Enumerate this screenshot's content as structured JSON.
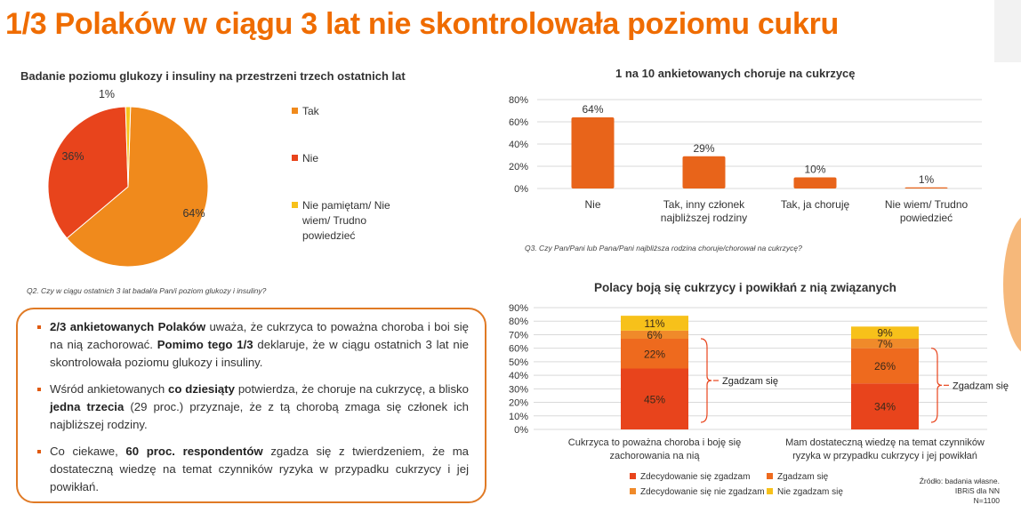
{
  "title": "1/3 Polaków w ciągu 3 lat nie skontrolowała poziomu cukru",
  "colors": {
    "accent": "#ef6c00",
    "dark_orange": "#e84a1a",
    "light_orange": "#f08020",
    "yellow": "#f7c11a"
  },
  "chart_data": [
    {
      "type": "pie",
      "title": "Badanie poziomu glukozy i insuliny na przestrzeni trzech ostatnich lat",
      "question": "Q2. Czy w ciągu ostatnich 3 lat badał/a Pan/i poziom glukozy i insuliny?",
      "labels": [
        "Tak",
        "Nie",
        "Nie pamiętam/ Nie wiem/ Trudno powiedzieć"
      ],
      "values": [
        64,
        36,
        1
      ],
      "value_labels": [
        "64%",
        "36%",
        "1%"
      ],
      "colors": [
        "#f08a1c",
        "#e8441c",
        "#f7c11a"
      ],
      "legend_position": "right"
    },
    {
      "type": "bar",
      "title": "1 na 10 ankietowanych choruje na cukrzycę",
      "question": "Q3. Czy Pan/Pani lub Pana/Pani najbliższa rodzina choruje/chorował na cukrzycę?",
      "categories": [
        "Nie",
        "Tak, inny członek najbliższej rodziny",
        "Tak, ja choruję",
        "Nie wiem/ Trudno powiedzieć"
      ],
      "category_lines": [
        [
          "Nie"
        ],
        [
          "Tak, inny członek",
          "najbliższej rodziny"
        ],
        [
          "Tak, ja choruję"
        ],
        [
          "Nie wiem/ Trudno",
          "powiedzieć"
        ]
      ],
      "values": [
        64,
        29,
        10,
        1
      ],
      "value_labels": [
        "64%",
        "29%",
        "10%",
        "1%"
      ],
      "ylim": [
        0,
        80
      ],
      "yticks": [
        "0%",
        "20%",
        "40%",
        "60%",
        "80%"
      ],
      "color": "#e8641a"
    },
    {
      "type": "bar",
      "stacked": true,
      "title": "Polacy boją się cukrzycy i powikłań z nią związanych",
      "categories": [
        "Cukrzyca to poważna choroba i boję się zachorowania na nią",
        "Mam dostateczną wiedzę na temat czynników ryzyka w przypadku cukrzycy i jej powikłań"
      ],
      "category_lines": [
        [
          "Cukrzyca to poważna choroba i boję się",
          "zachorowania na nią"
        ],
        [
          "Mam dostateczną wiedzę na temat czynników",
          "ryzyka w przypadku cukrzycy i jej powikłań"
        ]
      ],
      "series": [
        {
          "name": "Zdecydowanie się zgadzam",
          "values": [
            45,
            34
          ],
          "labels": [
            "45%",
            "34%"
          ],
          "color": "#e8441c"
        },
        {
          "name": "Zgadzam się",
          "values": [
            22,
            26
          ],
          "labels": [
            "22%",
            "26%"
          ],
          "color": "#ee6a1e"
        },
        {
          "name": "Zdecydowanie się nie zgadzam",
          "values": [
            6,
            7
          ],
          "labels": [
            "6%",
            "7%"
          ],
          "color": "#f08a2a"
        },
        {
          "name": "Nie zgadzam się",
          "values": [
            11,
            9
          ],
          "labels": [
            "11%",
            "9%"
          ],
          "color": "#f7c11a"
        }
      ],
      "ylim": [
        0,
        90
      ],
      "yticks": [
        "0%",
        "10%",
        "20%",
        "30%",
        "40%",
        "50%",
        "60%",
        "70%",
        "80%",
        "90%"
      ],
      "annotations": [
        "Zgadzam się",
        "Zgadzam się"
      ],
      "legend_position": "bottom"
    }
  ],
  "bullets": [
    [
      {
        "b": true,
        "t": "2/3 ankietowanych Polaków"
      },
      {
        "b": false,
        "t": " uważa, że cukrzyca to poważna choroba i boi się na nią zachorować. "
      },
      {
        "b": true,
        "t": "Pomimo tego 1/3"
      },
      {
        "b": false,
        "t": " deklaruje, że w ciągu ostatnich 3 lat nie skontrolowała poziomu glukozy i insuliny."
      }
    ],
    [
      {
        "b": false,
        "t": "Wśród ankietowanych "
      },
      {
        "b": true,
        "t": "co dziesiąty"
      },
      {
        "b": false,
        "t": " potwierdza, że choruje na cukrzycę, a blisko "
      },
      {
        "b": true,
        "t": "jedna trzecia"
      },
      {
        "b": false,
        "t": " (29 proc.) przyznaje, że z tą chorobą zmaga się członek ich najbliższej rodziny."
      }
    ],
    [
      {
        "b": false,
        "t": "Co ciekawe, "
      },
      {
        "b": true,
        "t": "60 proc. respondentów"
      },
      {
        "b": false,
        "t": " zgadza się z twierdzeniem, że ma dostateczną wiedzę na temat czynników ryzyka w przypadku cukrzycy i jej powikłań."
      }
    ]
  ],
  "source": [
    "Źródło: badania własne.",
    "IBRiS dla NN",
    "N=1100"
  ]
}
